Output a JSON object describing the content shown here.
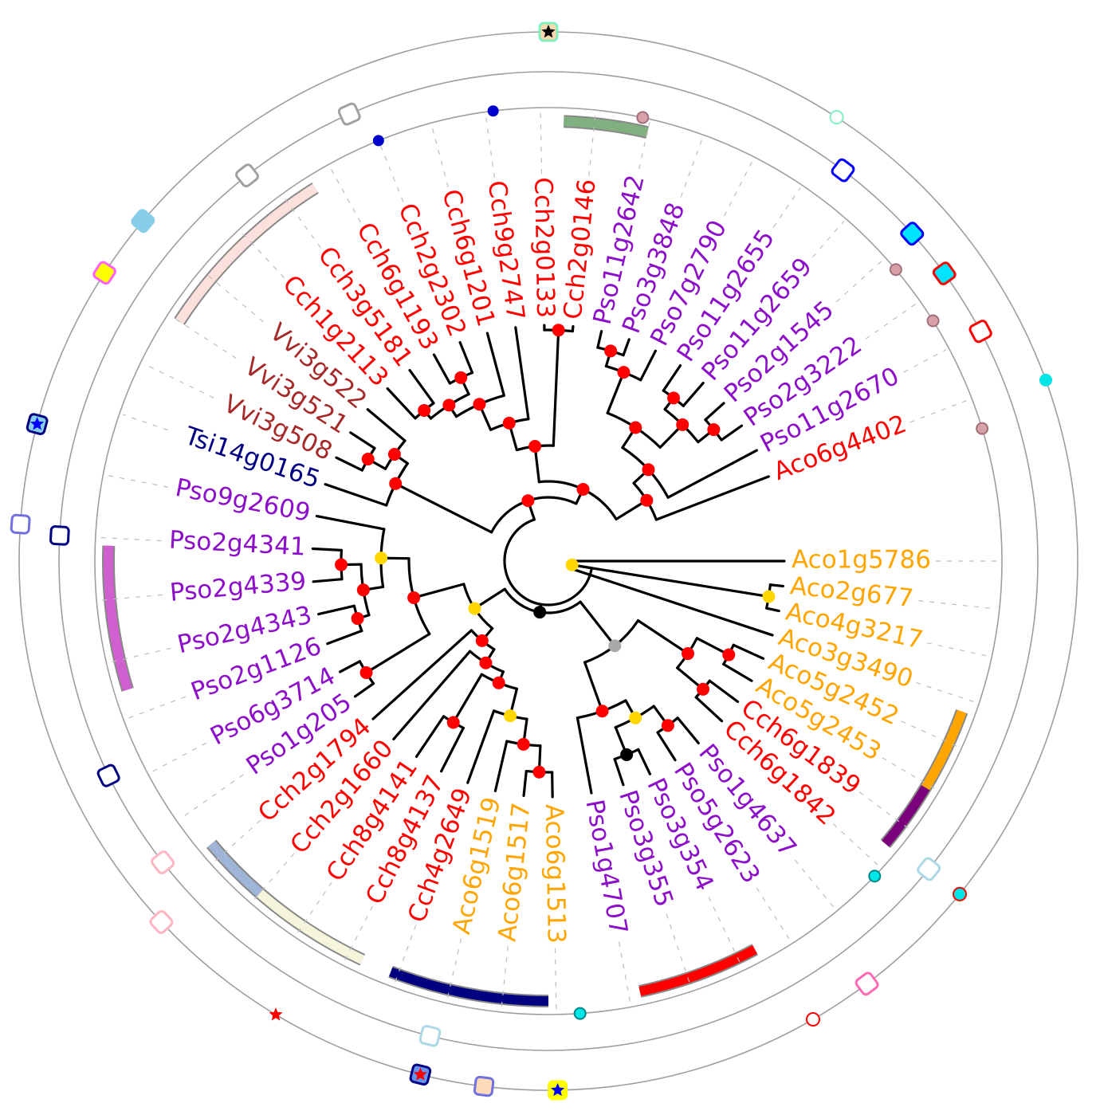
{
  "tree": {
    "leaves": [
      {
        "label": "Aco1g5786",
        "color": "#FFA500",
        "angle": 0
      },
      {
        "label": "Aco2g677",
        "color": "#FFA500",
        "angle": 6.1
      },
      {
        "label": "Aco4g3217",
        "color": "#FFA500",
        "angle": 12.2
      },
      {
        "label": "Aco3g3490",
        "color": "#FFA500",
        "angle": 18.3
      },
      {
        "label": "Aco5g2452",
        "color": "#FFA500",
        "angle": 24.4
      },
      {
        "label": "Aco5g2453",
        "color": "#FFA500",
        "angle": 30.5
      },
      {
        "label": "Cch6g1839",
        "color": "#FF0000",
        "angle": 36.6
      },
      {
        "label": "Cch6g1842",
        "color": "#FF0000",
        "angle": 42.7
      },
      {
        "label": "Pso1g4637",
        "color": "#8B10C8",
        "angle": 50.5
      },
      {
        "label": "Pso5g2623",
        "color": "#8B10C8",
        "angle": 57.5
      },
      {
        "label": "Pso3g354",
        "color": "#8B10C8",
        "angle": 64.5
      },
      {
        "label": "Pso3g355",
        "color": "#8B10C8",
        "angle": 71.5
      },
      {
        "label": "Pso1g4707",
        "color": "#8B10C8",
        "angle": 79.5
      },
      {
        "label": "Aco6g1513",
        "color": "#FFA500",
        "angle": 89
      },
      {
        "label": "Aco6g1517",
        "color": "#FFA500",
        "angle": 96
      },
      {
        "label": "Aco6g1519",
        "color": "#FFA500",
        "angle": 103
      },
      {
        "label": "Cch4g2649",
        "color": "#FF0000",
        "angle": 110
      },
      {
        "label": "Cch8g4137",
        "color": "#FF0000",
        "angle": 117
      },
      {
        "label": "Cch8g4141",
        "color": "#FF0000",
        "angle": 124
      },
      {
        "label": "Cch2g1660",
        "color": "#FF0000",
        "angle": 131
      },
      {
        "label": "Cch2g1794",
        "color": "#FF0000",
        "angle": 138
      },
      {
        "label": "Pso1g205",
        "color": "#8B10C8",
        "angle": 145
      },
      {
        "label": "Pso6g3714",
        "color": "#8B10C8",
        "angle": 152
      },
      {
        "label": "Pso2g1126",
        "color": "#8B10C8",
        "angle": 159.5
      },
      {
        "label": "Pso2g4343",
        "color": "#8B10C8",
        "angle": 167
      },
      {
        "label": "Pso2g4339",
        "color": "#8B10C8",
        "angle": 175
      },
      {
        "label": "Pso2g4341",
        "color": "#8B10C8",
        "angle": 183
      },
      {
        "label": "Pso9g2609",
        "color": "#8B10C8",
        "angle": 191
      },
      {
        "label": "Tsi14g0165",
        "color": "#000080",
        "angle": 199
      },
      {
        "label": "Vvi3g508",
        "color": "#A52A2A",
        "angle": 206
      },
      {
        "label": "Vvi3g521",
        "color": "#A52A2A",
        "angle": 213
      },
      {
        "label": "Vvi3g522",
        "color": "#A52A2A",
        "angle": 220
      },
      {
        "label": "Cch1g2113",
        "color": "#FF0000",
        "angle": 227
      },
      {
        "label": "Cch3g5181",
        "color": "#FF0000",
        "angle": 234
      },
      {
        "label": "Cch6g1193",
        "color": "#FF0000",
        "angle": 241
      },
      {
        "label": "Cch2g2302",
        "color": "#FF0000",
        "angle": 248
      },
      {
        "label": "Cch6g1201",
        "color": "#FF0000",
        "angle": 255
      },
      {
        "label": "Cch9g2747",
        "color": "#FF0000",
        "angle": 262
      },
      {
        "label": "Cch2g0133",
        "color": "#FF0000",
        "angle": 269
      },
      {
        "label": "Cch2g0146",
        "color": "#FF0000",
        "angle": 276
      },
      {
        "label": "Pso11g2642",
        "color": "#8B10C8",
        "angle": 283
      },
      {
        "label": "Pso3g3848",
        "color": "#8B10C8",
        "angle": 290
      },
      {
        "label": "Pso7g2790",
        "color": "#8B10C8",
        "angle": 297
      },
      {
        "label": "Pso11g2655",
        "color": "#8B10C8",
        "angle": 304
      },
      {
        "label": "Pso11g2659",
        "color": "#8B10C8",
        "angle": 311
      },
      {
        "label": "Pso2g1545",
        "color": "#8B10C8",
        "angle": 318
      },
      {
        "label": "Pso2g3222",
        "color": "#8B10C8",
        "angle": 325
      },
      {
        "label": "Pso11g2670",
        "color": "#8B10C8",
        "angle": 332
      },
      {
        "label": "Aco6g4402",
        "color": "#FF0000",
        "angle": 339
      }
    ]
  },
  "annotation_colors": {
    "red": "#FF0000",
    "gold": "#FFD700",
    "black": "#000000",
    "grey": "#A9A9A9",
    "cyan": "#00E5E5",
    "blue": "#0000CD",
    "navy": "#000080",
    "pink": "#D8A0A8"
  }
}
